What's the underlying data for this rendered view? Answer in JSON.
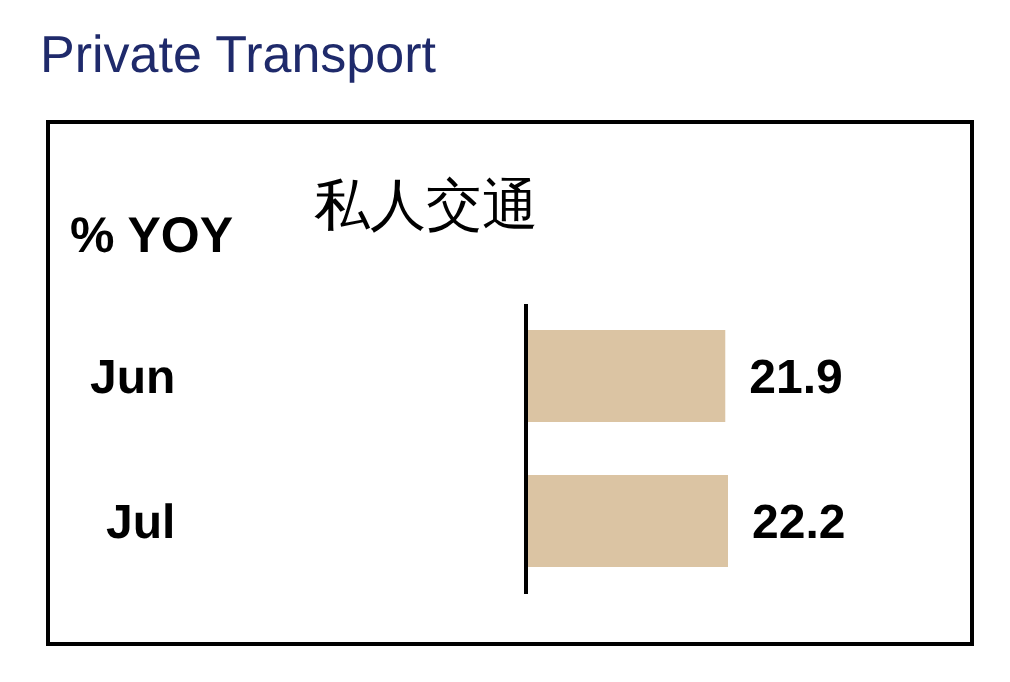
{
  "chart_data": {
    "type": "bar",
    "orientation": "horizontal",
    "title": "Private Transport",
    "subtitle": "私人交通",
    "ylabel": "% YOY",
    "categories": [
      "Jun",
      "Jul"
    ],
    "values": [
      21.9,
      22.2
    ],
    "color": "#dbc4a3",
    "data_labels": true,
    "tick_labels": "y"
  }
}
